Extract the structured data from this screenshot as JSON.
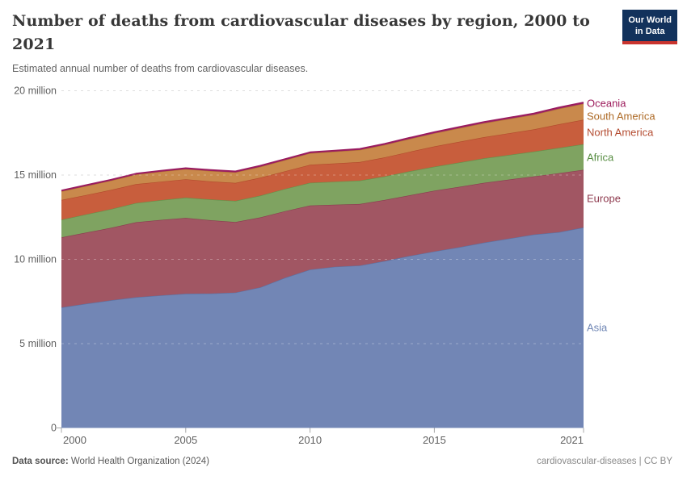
{
  "header": {
    "title": "Number of deaths from cardiovascular diseases by region, 2000 to 2021",
    "subtitle": "Estimated annual number of deaths from cardiovascular diseases.",
    "logo": {
      "line1": "Our World",
      "line2": "in Data"
    }
  },
  "chart_data": {
    "type": "area",
    "stacked": true,
    "title": "Number of deaths from cardiovascular diseases by region, 2000 to 2021",
    "subtitle": "Estimated annual number of deaths from cardiovascular diseases.",
    "xlabel": "",
    "ylabel": "",
    "values_unit": "million deaths per year",
    "ylim": [
      0,
      20
    ],
    "grid": "horizontal-dashed",
    "legend_position": "right",
    "x": [
      2000,
      2001,
      2002,
      2003,
      2004,
      2005,
      2006,
      2007,
      2008,
      2009,
      2010,
      2011,
      2012,
      2013,
      2014,
      2015,
      2016,
      2017,
      2018,
      2019,
      2020,
      2021
    ],
    "series": [
      {
        "name": "Asia",
        "fill": "#7286b5",
        "stroke": "#5b71a2",
        "label_color": "#6f86b4",
        "values": [
          7.15,
          7.37,
          7.57,
          7.75,
          7.86,
          7.96,
          7.97,
          8.03,
          8.34,
          8.91,
          9.39,
          9.56,
          9.63,
          9.9,
          10.2,
          10.47,
          10.72,
          10.99,
          11.23,
          11.47,
          11.61,
          11.89
        ]
      },
      {
        "name": "Europe",
        "fill": "#a15663",
        "stroke": "#8a3c4f",
        "label_color": "#8e3a4e",
        "values": [
          4.15,
          4.22,
          4.3,
          4.45,
          4.48,
          4.5,
          4.35,
          4.18,
          4.15,
          3.95,
          3.8,
          3.68,
          3.65,
          3.62,
          3.6,
          3.6,
          3.58,
          3.55,
          3.5,
          3.45,
          3.5,
          3.42
        ]
      },
      {
        "name": "Africa",
        "fill": "#7fa361",
        "stroke": "#649049",
        "label_color": "#568c41",
        "values": [
          1.05,
          1.08,
          1.11,
          1.14,
          1.17,
          1.2,
          1.23,
          1.26,
          1.29,
          1.32,
          1.35,
          1.37,
          1.39,
          1.4,
          1.42,
          1.43,
          1.44,
          1.45,
          1.46,
          1.47,
          1.5,
          1.52
        ]
      },
      {
        "name": "North America",
        "fill": "#c85e3d",
        "stroke": "#b1492b",
        "label_color": "#b44c31",
        "values": [
          1.17,
          1.15,
          1.14,
          1.12,
          1.1,
          1.09,
          1.07,
          1.06,
          1.06,
          1.05,
          1.07,
          1.08,
          1.1,
          1.13,
          1.16,
          1.2,
          1.23,
          1.26,
          1.29,
          1.32,
          1.4,
          1.45
        ]
      },
      {
        "name": "South America",
        "fill": "#c9894c",
        "stroke": "#b3742f",
        "label_color": "#ad6a26",
        "values": [
          0.51,
          0.53,
          0.55,
          0.57,
          0.59,
          0.6,
          0.62,
          0.63,
          0.65,
          0.66,
          0.68,
          0.7,
          0.72,
          0.74,
          0.76,
          0.78,
          0.81,
          0.83,
          0.85,
          0.87,
          0.92,
          0.95
        ]
      },
      {
        "name": "Oceania",
        "fill": "#a63371",
        "stroke": "#991b5f",
        "label_color": "#9c1a5b",
        "values": [
          0.05,
          0.051,
          0.052,
          0.053,
          0.054,
          0.055,
          0.056,
          0.057,
          0.058,
          0.059,
          0.06,
          0.061,
          0.062,
          0.063,
          0.064,
          0.065,
          0.066,
          0.067,
          0.068,
          0.069,
          0.07,
          0.072
        ]
      }
    ],
    "y_ticks": [
      {
        "value": 0,
        "label": "0"
      },
      {
        "value": 5,
        "label": "5 million"
      },
      {
        "value": 10,
        "label": "10 million"
      },
      {
        "value": 15,
        "label": "15 million"
      },
      {
        "value": 20,
        "label": "20 million"
      }
    ],
    "x_ticks": [
      {
        "value": 2000,
        "label": "2000"
      },
      {
        "value": 2005,
        "label": "2005"
      },
      {
        "value": 2010,
        "label": "2010"
      },
      {
        "value": 2015,
        "label": "2015"
      },
      {
        "value": 2021,
        "label": "2021"
      }
    ]
  },
  "footer": {
    "data_source_label": "Data source:",
    "data_source": "World Health Organization (2024)",
    "credit": "cardiovascular-diseases | CC BY"
  }
}
